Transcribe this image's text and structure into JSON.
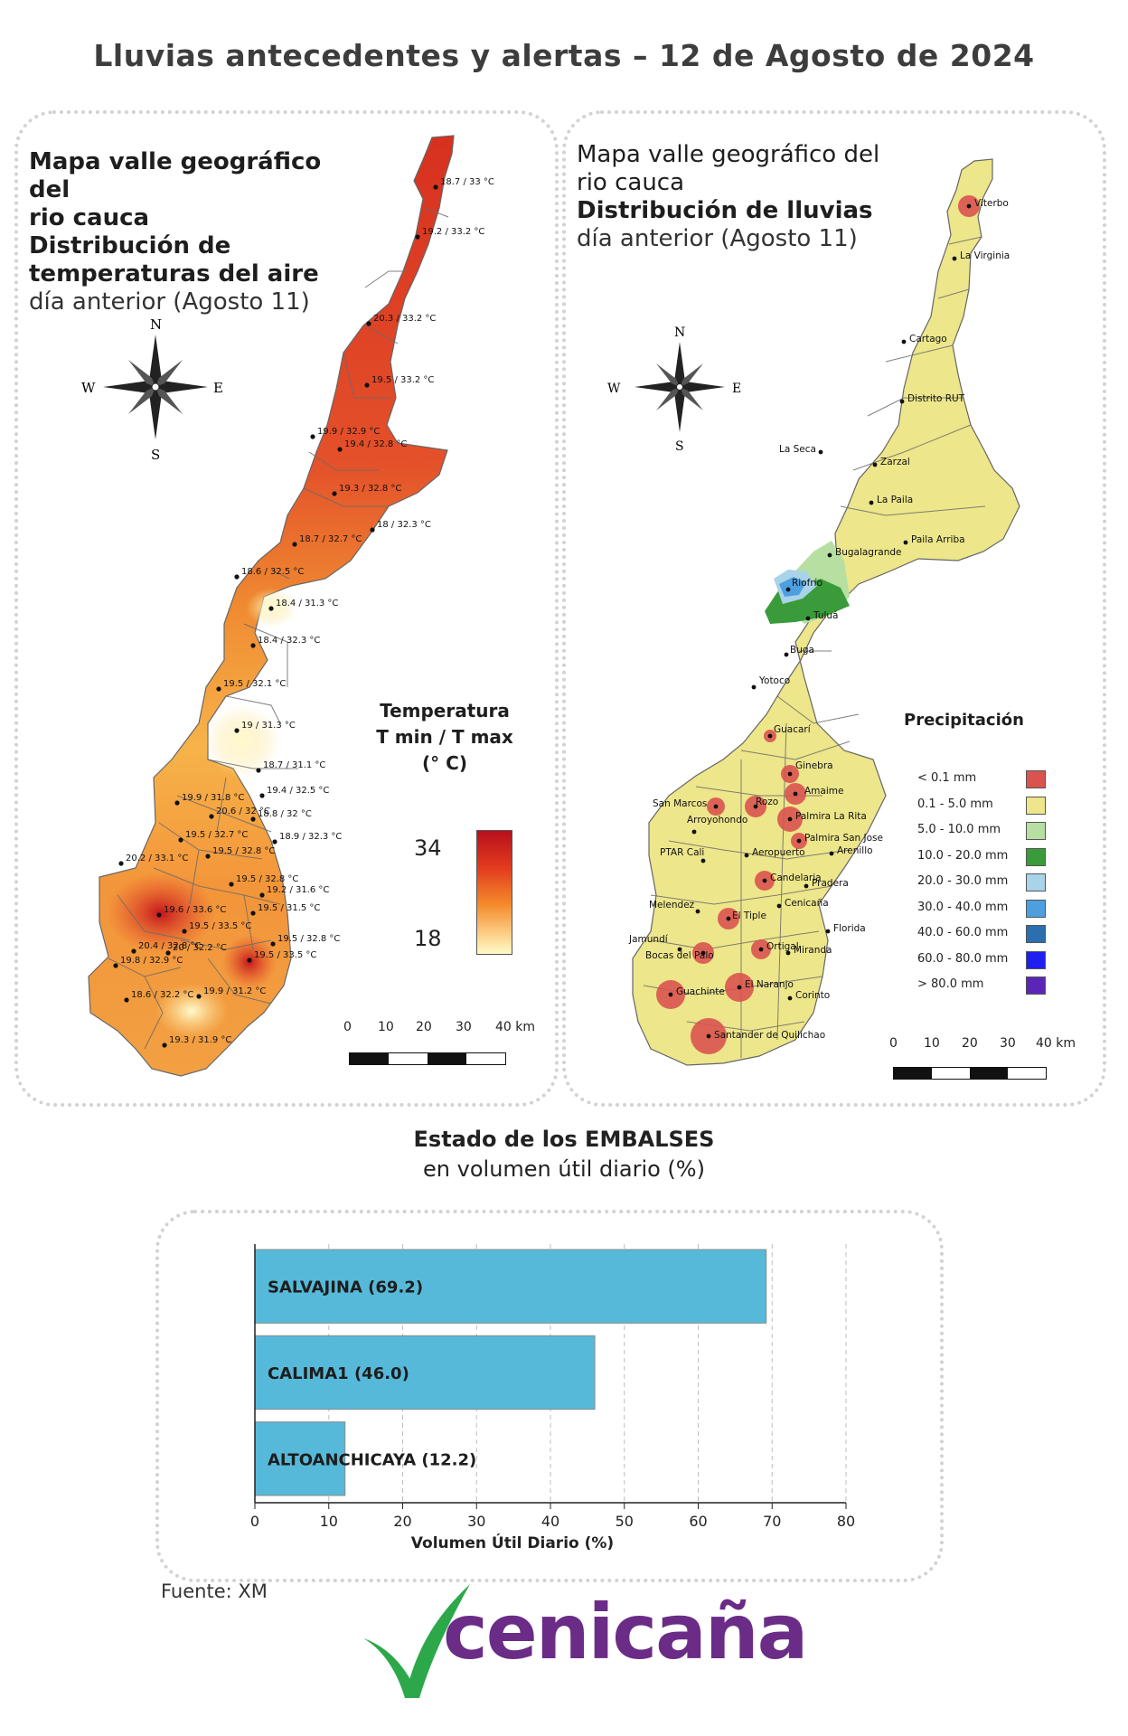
{
  "title": "Lluvias antecedentes y alertas – 12 de Agosto de 2024",
  "temperature_map": {
    "title_lines_bold": [
      "Mapa valle geográfico del",
      "rio cauca",
      "Distribución de",
      "temperaturas del aire"
    ],
    "subtitle": "día anterior (Agosto 11)",
    "compass": {
      "n": "N",
      "s": "S",
      "e": "E",
      "w": "W"
    },
    "legend_title": [
      "Temperatura",
      "T min / T max",
      "(° C)"
    ],
    "legend_max": "34",
    "legend_min": "18",
    "scale_labels": [
      "0",
      "10",
      "20",
      "30",
      "40 km"
    ],
    "station_labels": [
      "18.7 / 33 °C",
      "19.2 / 33.2 °C",
      "20.3 / 33.2 °C",
      "19.5 / 33.2 °C",
      "19.9 / 32.9 °C",
      "19.4 / 32.8 °C",
      "19.3 / 32.8 °C",
      "18 / 32.3 °C",
      "18.7 / 32.7 °C",
      "18.6 / 32.5 °C",
      "18.4 / 31.3 °C",
      "18.4 / 32.3 °C",
      "19.5 / 32.1 °C",
      "19 / 31.3 °C",
      "18.7 / 31.1 °C",
      "19.9 / 31.8 °C",
      "19.4 / 32.5 °C",
      "20.6 / 32 °C",
      "18.8 / 32 °C",
      "19.5 / 32.7 °C",
      "18.9 / 32.3 °C",
      "20.2 / 33.1 °C",
      "19.5 / 32.8 °C",
      "19.5 / 32.8 °C",
      "19.2 / 31.6 °C",
      "19.6 / 33.6 °C",
      "19.5 / 31.5 °C",
      "19.5 / 33.5 °C",
      "19.5 / 32.8 °C",
      "20.4 / 32.8 °C",
      "20 / 32.2 °C",
      "19.8 / 32.9 °C",
      "19.5 / 33.5 °C",
      "19.9 / 31.2 °C",
      "18.6 / 32.2 °C",
      "19.3 / 31.9 °C"
    ]
  },
  "rain_map": {
    "title_lines": [
      "Mapa valle geográfico del",
      "rio cauca"
    ],
    "title_bold": "Distribución de lluvias",
    "subtitle": "día anterior (Agosto 11)",
    "compass": {
      "n": "N",
      "s": "S",
      "e": "E",
      "w": "W"
    },
    "legend_title": "Precipitación",
    "legend": [
      {
        "label": "< 0.1 mm",
        "color": "#d9534f"
      },
      {
        "label": "0.1 - 5.0 mm",
        "color": "#ede68a"
      },
      {
        "label": "5.0 - 10.0 mm",
        "color": "#b7dfa2"
      },
      {
        "label": "10.0 - 20.0 mm",
        "color": "#3a9b3a"
      },
      {
        "label": "20.0 - 30.0 mm",
        "color": "#a9d3e8"
      },
      {
        "label": "30.0 - 40.0 mm",
        "color": "#4d9fe0"
      },
      {
        "label": "40.0 - 60.0 mm",
        "color": "#2b6fb0"
      },
      {
        "label": "60.0 - 80.0 mm",
        "color": "#1f1ff0"
      },
      {
        "label": "> 80.0 mm",
        "color": "#5b25b8"
      }
    ],
    "scale_labels": [
      "0",
      "10",
      "20",
      "30",
      "40 km"
    ],
    "stations": [
      "Viterbo",
      "La Virginia",
      "Cartago",
      "Distrito RUT",
      "La Seca",
      "Zarzal",
      "La Paila",
      "Paila Arriba",
      "Bugalagrande",
      "Riofrío",
      "Tuluá",
      "Buga",
      "Yotoco",
      "Guacarí",
      "Ginebra",
      "Amaime",
      "San Marcos",
      "Rozo",
      "Palmira La Rita",
      "Arroyohondo",
      "Palmira San Jose",
      "Aeropuerto",
      "Arenillo",
      "PTAR Cali",
      "Candelaria",
      "Pradera",
      "Melendez",
      "Cenicaña",
      "El Tiple",
      "Florida",
      "Jamundí",
      "Bocas del Palo",
      "Ortigal",
      "Miranda",
      "Guachinte",
      "El Naranjo",
      "Corinto",
      "Santander de Quilichao"
    ]
  },
  "reservoirs": {
    "title": "Estado de los EMBALSES",
    "subtitle": "en volumen útil diario (%)",
    "chart_data": {
      "type": "bar",
      "orientation": "horizontal",
      "categories": [
        "SALVAJINA (69.2)",
        "CALIMA1 (46.0)",
        "ALTOANCHICAYA (12.2)"
      ],
      "values": [
        69.2,
        46.0,
        12.2
      ],
      "xlabel": "Volumen Útil Diario (%)",
      "xlim": [
        0,
        80
      ],
      "xticks": [
        "0",
        "10",
        "20",
        "30",
        "40",
        "50",
        "60",
        "70",
        "80"
      ],
      "grid": true,
      "bar_color": "#56b9d9"
    }
  },
  "source": "Fuente: XM",
  "logo_text": "cenicaña",
  "colors": {
    "logo_green": "#2ca84a",
    "logo_purple": "#6a2c86"
  }
}
